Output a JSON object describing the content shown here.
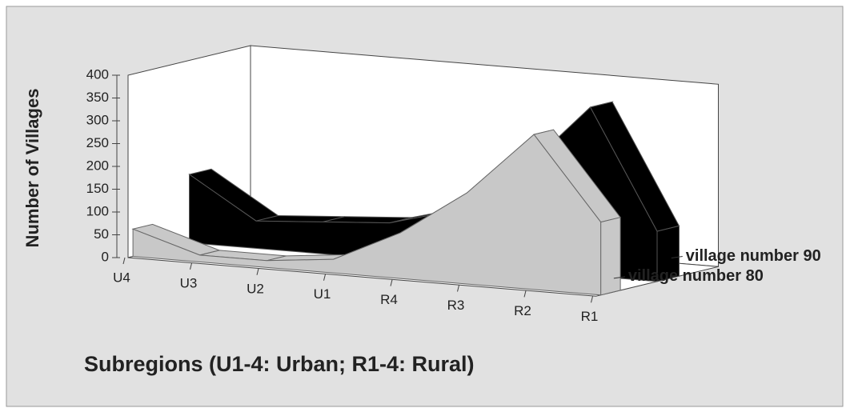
{
  "chart_data": {
    "type": "ribbon3d",
    "y_label": "Number of Villages",
    "x_label": "Subregions (U1-4: Urban; R1-4: Rural)",
    "categories": [
      "U4",
      "U3",
      "U2",
      "U1",
      "R4",
      "R3",
      "R2",
      "R1"
    ],
    "series": [
      {
        "name": "village number 90",
        "color": "#000000",
        "values": [
          150,
          60,
          70,
          80,
          120,
          220,
          370,
          110
        ]
      },
      {
        "name": "village number 80",
        "color": "#c8c8c8",
        "values": [
          60,
          15,
          15,
          30,
          100,
          200,
          340,
          160
        ]
      }
    ],
    "ylim": [
      0,
      400
    ],
    "yticks": [
      0,
      50,
      100,
      150,
      200,
      250,
      300,
      350,
      400
    ]
  }
}
